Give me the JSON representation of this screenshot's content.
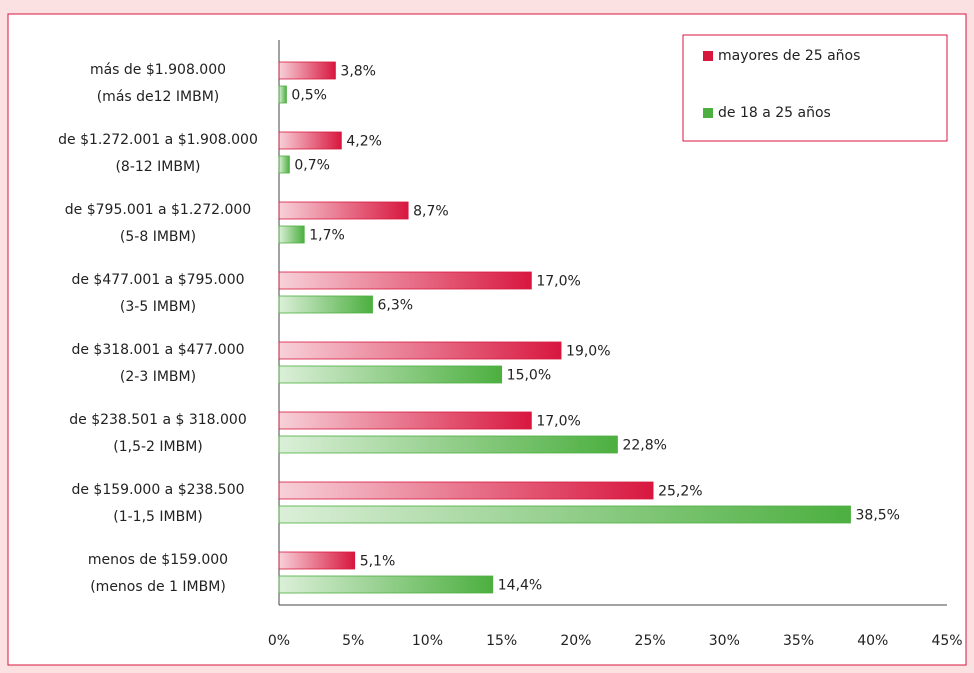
{
  "chart_data": {
    "type": "bar",
    "orientation": "horizontal",
    "categories": [
      [
        "más de $1.908.000",
        "(más de12 IMBM)"
      ],
      [
        "de $1.272.001 a $1.908.000",
        "(8-12 IMBM)"
      ],
      [
        "de $795.001 a $1.272.000",
        "(5-8 IMBM)"
      ],
      [
        "de $477.001 a $795.000",
        "(3-5 IMBM)"
      ],
      [
        "de $318.001 a $477.000",
        "(2-3 IMBM)"
      ],
      [
        "de $238.501 a $ 318.000",
        "(1,5-2 IMBM)"
      ],
      [
        "de $159.000 a $238.500",
        "(1-1,5 IMBM)"
      ],
      [
        "menos de $159.000",
        "(menos de 1 IMBM)"
      ]
    ],
    "series": [
      {
        "name": "mayores de 25 años",
        "color": "#d8173f",
        "values": [
          3.8,
          4.2,
          8.7,
          17.0,
          19.0,
          17.0,
          25.2,
          5.1
        ],
        "value_labels": [
          "3,8%",
          "4,2%",
          "8,7%",
          "17,0%",
          "19,0%",
          "17,0%",
          "25,2%",
          "5,1%"
        ]
      },
      {
        "name": "de 18 a 25 años",
        "color": "#4caf3f",
        "values": [
          0.5,
          0.7,
          1.7,
          6.3,
          15.0,
          22.8,
          38.5,
          14.4
        ],
        "value_labels": [
          "0,5%",
          "0,7%",
          "1,7%",
          "6,3%",
          "15,0%",
          "22,8%",
          "38,5%",
          "14,4%"
        ]
      }
    ],
    "xlim": [
      0,
      45
    ],
    "xticks": [
      {
        "value": 0,
        "label": "0%"
      },
      {
        "value": 5,
        "label": "5%"
      },
      {
        "value": 10,
        "label": "10%"
      },
      {
        "value": 15,
        "label": "15%"
      },
      {
        "value": 20,
        "label": "20%"
      },
      {
        "value": 25,
        "label": "25%"
      },
      {
        "value": 30,
        "label": "30%"
      },
      {
        "value": 35,
        "label": "35%"
      },
      {
        "value": 40,
        "label": "40%"
      },
      {
        "value": 45,
        "label": "45%"
      }
    ],
    "legend": "top-right"
  }
}
